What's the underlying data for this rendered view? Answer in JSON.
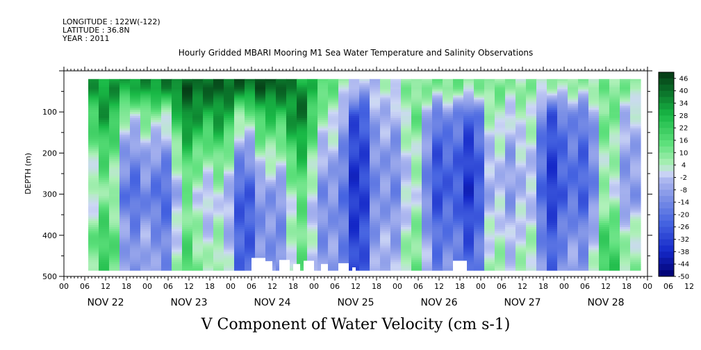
{
  "header": {
    "longitude": "LONGITUDE : 122W(-122)",
    "latitude": "LATITUDE : 36.8N",
    "year": "YEAR : 2011"
  },
  "chart_data": {
    "type": "heatmap",
    "title": "Hourly Gridded MBARI Mooring M1 Sea Water Temperature and Salinity Observations",
    "caption": "V Component of Water Velocity (cm s-1)",
    "ylabel": "DEPTH (m)",
    "ylim": [
      500,
      0
    ],
    "yticks": [
      100,
      200,
      300,
      400,
      500
    ],
    "xticks_hours": [
      "00",
      "06",
      "12",
      "18",
      "00",
      "06",
      "12",
      "18",
      "00",
      "06",
      "12",
      "18",
      "00",
      "06",
      "12",
      "18",
      "00",
      "06",
      "12",
      "18",
      "00",
      "06",
      "12",
      "18",
      "00",
      "06",
      "12",
      "18",
      "00",
      "06",
      "12",
      "18"
    ],
    "xday_labels": [
      "NOV 22",
      "NOV 23",
      "NOV 24",
      "NOV 25",
      "NOV 26",
      "NOV 27",
      "NOV 28"
    ],
    "data_extent": {
      "start_hour_of_nov22": 7,
      "end_hour_of_nov28": 21,
      "depth_top": 20,
      "depth_bottom": 485
    },
    "colorbar": {
      "labels": [
        "46",
        "40",
        "34",
        "28",
        "22",
        "16",
        "10",
        "4",
        "-2",
        "-8",
        "-14",
        "-20",
        "-26",
        "-32",
        "-38",
        "-44",
        "-50"
      ],
      "min": -50,
      "max": 49
    },
    "approx_field": {
      "description_values_cm_s": "coarse day-by-depth values",
      "days": [
        "NOV 22",
        "NOV 23",
        "NOV 24",
        "NOV 25",
        "NOV 26",
        "NOV 27",
        "NOV 28"
      ],
      "depths": [
        40,
        100,
        200,
        300,
        400,
        470
      ],
      "values": [
        [
          30,
          15,
          0,
          -8,
          4,
          2
        ],
        [
          40,
          22,
          2,
          -10,
          -5,
          0
        ],
        [
          44,
          30,
          10,
          -6,
          -8,
          -8
        ],
        [
          -4,
          -10,
          -14,
          -16,
          -12,
          -10
        ],
        [
          12,
          -6,
          -16,
          -18,
          -10,
          -6
        ],
        [
          6,
          -8,
          -14,
          -16,
          -10,
          -8
        ],
        [
          8,
          -6,
          -12,
          -14,
          0,
          4
        ]
      ]
    }
  }
}
